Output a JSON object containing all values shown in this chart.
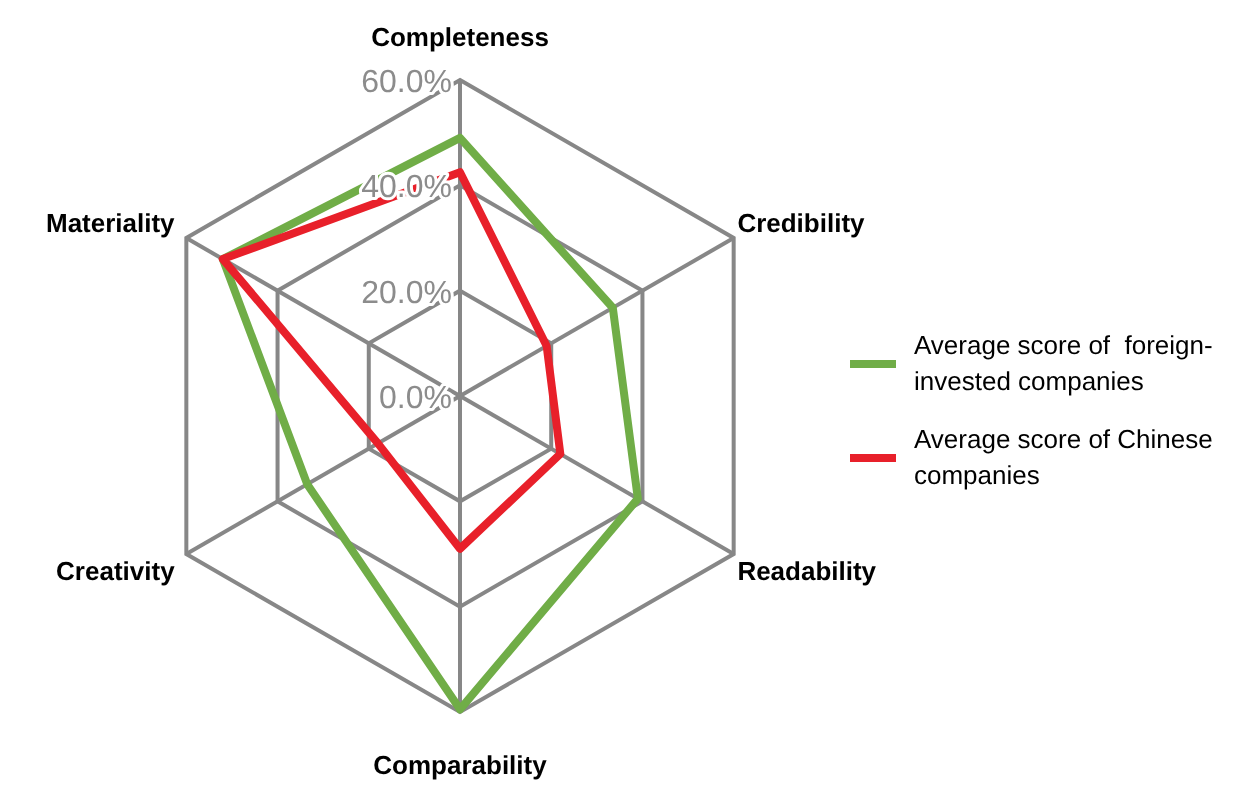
{
  "chart_data": {
    "type": "radar",
    "categories": [
      "Completeness",
      "Credibility",
      "Readability",
      "Comparability",
      "Creativity",
      "Materiality"
    ],
    "series": [
      {
        "name": "Average score of  foreign-invested companies",
        "color": "#70ad47",
        "values": [
          49,
          33.5,
          39,
          59.5,
          33.5,
          52
        ]
      },
      {
        "name": "Average score of Chinese companies",
        "color": "#e8202a",
        "values": [
          42.5,
          19,
          22,
          29,
          18,
          52
        ]
      }
    ],
    "ylim": [
      0,
      60
    ],
    "yticks": [
      {
        "value": 0,
        "label": "0.0%"
      },
      {
        "value": 20,
        "label": "20.0%"
      },
      {
        "value": 40,
        "label": "40.0%"
      },
      {
        "value": 60,
        "label": "60.0%"
      }
    ],
    "grid": true,
    "legend": "right",
    "marker": "none",
    "line_style": "solid"
  }
}
